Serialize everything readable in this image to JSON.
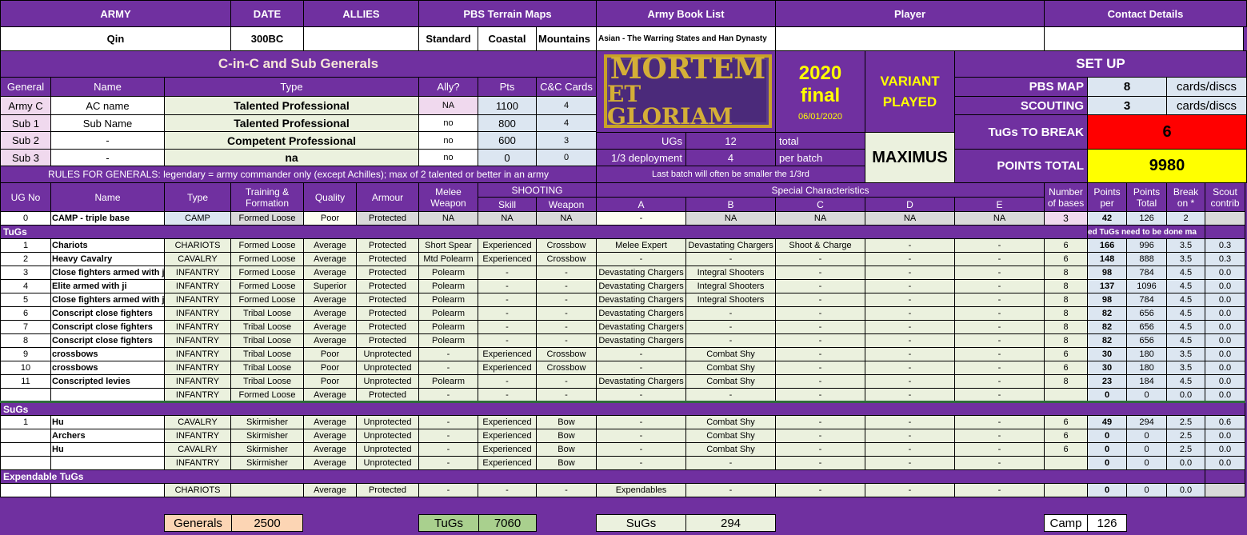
{
  "header": {
    "army_label": "ARMY",
    "date_label": "DATE",
    "allies_label": "ALLIES",
    "pbs_label": "PBS Terrain Maps",
    "book_label": "Army Book List",
    "player_label": "Player",
    "contact_label": "Contact Details",
    "army": "Qin",
    "date": "300BC",
    "allies": "",
    "pbs_maps": [
      "Standard",
      "Coastal",
      "Mountains"
    ],
    "book": "Asian - The Warring States and Han Dynasty",
    "player": "",
    "contact": ""
  },
  "generals": {
    "title": "C-in-C and Sub Generals",
    "cols": [
      "General",
      "Name",
      "Type",
      "Ally?",
      "Pts",
      "C&C Cards"
    ],
    "rows": [
      [
        "Army C",
        "AC name",
        "Talented Professional",
        "NA",
        "1100",
        "4"
      ],
      [
        "Sub 1",
        "Sub Name",
        "Talented Professional",
        "no",
        "800",
        "4"
      ],
      [
        "Sub 2",
        "-",
        "Competent Professional",
        "no",
        "600",
        "3"
      ],
      [
        "Sub 3",
        "-",
        "na",
        "no",
        "0",
        "0"
      ]
    ],
    "rules": "RULES FOR GENERALS: legendary = army commander only (except Achilles); max of 2 talented or better in an army"
  },
  "logo": {
    "line1": "MORTEM",
    "line2": "ET GLORIAM"
  },
  "version": {
    "year": "2020",
    "status": "final",
    "date": "06/01/2020"
  },
  "deploy": {
    "ugs_label": "UGs",
    "ugs": "12",
    "ugs_unit": "total",
    "third_label": "1/3 deployment",
    "third": "4",
    "third_unit": "per batch",
    "note": "Last batch will often be smaller the 1/3rd"
  },
  "variant": {
    "label1": "VARIANT",
    "label2": "PLAYED",
    "value": "MAXIMUS"
  },
  "setup": {
    "title": "SET UP",
    "pbs_label": "PBS MAP",
    "pbs": "8",
    "pbs_unit": "cards/discs",
    "scout_label": "SCOUTING",
    "scout": "3",
    "scout_unit": "cards/discs",
    "break_label": "TuGs TO BREAK",
    "break": "6",
    "points_label": "POINTS TOTAL",
    "points": "9980",
    "colors": {
      "break": "#ff0000",
      "points": "#ffff00"
    }
  },
  "table": {
    "h1": [
      "UG No",
      "Name",
      "Type",
      "Training & Formation",
      "Quality",
      "Armour",
      "Melee Weapon",
      "SHOOTING",
      "Special Characteristics",
      "Number of bases",
      "Points per",
      "Points Total",
      "Break on *",
      "Scout contrib"
    ],
    "h2": [
      "Skill",
      "Weapon",
      "A",
      "B",
      "C",
      "D",
      "E"
    ],
    "camp": [
      "0",
      "CAMP - triple base",
      "CAMP",
      "Formed Loose",
      "Poor",
      "Protected",
      "NA",
      "NA",
      "NA",
      "-",
      "NA",
      "NA",
      "NA",
      "NA",
      "3",
      "42",
      "126",
      "2",
      ""
    ],
    "tugs_label": "TuGs",
    "tugs_note": "ed TuGs need to be done ma",
    "tugs": [
      [
        "1",
        "Chariots",
        "CHARIOTS",
        "Formed Loose",
        "Average",
        "Protected",
        "Short Spear",
        "Experienced",
        "Crossbow",
        "Melee Expert",
        "Devastating Chargers",
        "Shoot & Charge",
        "-",
        "-",
        "6",
        "166",
        "996",
        "3.5",
        "0.3"
      ],
      [
        "2",
        "Heavy Cavalry",
        "CAVALRY",
        "Formed Loose",
        "Average",
        "Protected",
        "Mtd Polearm",
        "Experienced",
        "Crossbow",
        "-",
        "-",
        "-",
        "-",
        "-",
        "6",
        "148",
        "888",
        "3.5",
        "0.3"
      ],
      [
        "3",
        "Close fighters armed with ji",
        "INFANTRY",
        "Formed Loose",
        "Average",
        "Protected",
        "Polearm",
        "-",
        "-",
        "Devastating Chargers",
        "Integral Shooters",
        "-",
        "-",
        "-",
        "8",
        "98",
        "784",
        "4.5",
        "0.0"
      ],
      [
        "4",
        "Elite armed with ji",
        "INFANTRY",
        "Formed Loose",
        "Superior",
        "Protected",
        "Polearm",
        "-",
        "-",
        "Devastating Chargers",
        "Integral Shooters",
        "-",
        "-",
        "-",
        "8",
        "137",
        "1096",
        "4.5",
        "0.0"
      ],
      [
        "5",
        "Close fighters armed with ji",
        "INFANTRY",
        "Formed Loose",
        "Average",
        "Protected",
        "Polearm",
        "-",
        "-",
        "Devastating Chargers",
        "Integral Shooters",
        "-",
        "-",
        "-",
        "8",
        "98",
        "784",
        "4.5",
        "0.0"
      ],
      [
        "6",
        "Conscript close fighters",
        "INFANTRY",
        "Tribal Loose",
        "Average",
        "Protected",
        "Polearm",
        "-",
        "-",
        "Devastating Chargers",
        "-",
        "-",
        "-",
        "-",
        "8",
        "82",
        "656",
        "4.5",
        "0.0"
      ],
      [
        "7",
        "Conscript close fighters",
        "INFANTRY",
        "Tribal Loose",
        "Average",
        "Protected",
        "Polearm",
        "-",
        "-",
        "Devastating Chargers",
        "-",
        "-",
        "-",
        "-",
        "8",
        "82",
        "656",
        "4.5",
        "0.0"
      ],
      [
        "8",
        "Conscript close fighters",
        "INFANTRY",
        "Tribal Loose",
        "Average",
        "Protected",
        "Polearm",
        "-",
        "-",
        "Devastating Chargers",
        "-",
        "-",
        "-",
        "-",
        "8",
        "82",
        "656",
        "4.5",
        "0.0"
      ],
      [
        "9",
        "crossbows",
        "INFANTRY",
        "Tribal Loose",
        "Poor",
        "Unprotected",
        "-",
        "Experienced",
        "Crossbow",
        "-",
        "Combat Shy",
        "-",
        "-",
        "-",
        "6",
        "30",
        "180",
        "3.5",
        "0.0"
      ],
      [
        "10",
        "crossbows",
        "INFANTRY",
        "Tribal Loose",
        "Poor",
        "Unprotected",
        "-",
        "Experienced",
        "Crossbow",
        "-",
        "Combat Shy",
        "-",
        "-",
        "-",
        "6",
        "30",
        "180",
        "3.5",
        "0.0"
      ],
      [
        "11",
        "Conscripted levies",
        "INFANTRY",
        "Tribal Loose",
        "Poor",
        "Unprotected",
        "Polearm",
        "-",
        "-",
        "Devastating Chargers",
        "Combat Shy",
        "-",
        "-",
        "-",
        "8",
        "23",
        "184",
        "4.5",
        "0.0"
      ],
      [
        "",
        "",
        "INFANTRY",
        "Formed Loose",
        "Average",
        "Protected",
        "-",
        "-",
        "-",
        "-",
        "-",
        "-",
        "-",
        "-",
        "",
        "0",
        "0",
        "0.0",
        "0.0"
      ]
    ],
    "sugs_label": "SuGs",
    "sugs": [
      [
        "1",
        "Hu",
        "CAVALRY",
        "Skirmisher",
        "Average",
        "Unprotected",
        "-",
        "Experienced",
        "Bow",
        "-",
        "Combat Shy",
        "-",
        "-",
        "-",
        "6",
        "49",
        "294",
        "2.5",
        "0.6"
      ],
      [
        "",
        "Archers",
        "INFANTRY",
        "Skirmisher",
        "Average",
        "Unprotected",
        "-",
        "Experienced",
        "Bow",
        "-",
        "Combat Shy",
        "-",
        "-",
        "-",
        "6",
        "0",
        "0",
        "2.5",
        "0.0"
      ],
      [
        "",
        "Hu",
        "CAVALRY",
        "Skirmisher",
        "Average",
        "Unprotected",
        "-",
        "Experienced",
        "Bow",
        "-",
        "Combat Shy",
        "-",
        "-",
        "-",
        "6",
        "0",
        "0",
        "2.5",
        "0.0"
      ],
      [
        "",
        "",
        "INFANTRY",
        "Skirmisher",
        "Average",
        "Unprotected",
        "-",
        "Experienced",
        "Bow",
        "-",
        "-",
        "-",
        "-",
        "-",
        "",
        "0",
        "0",
        "0.0",
        "0.0"
      ]
    ],
    "exp_label": "Expendable TuGs",
    "exp": [
      [
        "",
        "",
        "CHARIOTS",
        "",
        "Average",
        "Protected",
        "-",
        "-",
        "-",
        "Expendables",
        "-",
        "-",
        "-",
        "-",
        "",
        "0",
        "0",
        "0.0",
        ""
      ]
    ]
  },
  "summary": {
    "generals_label": "Generals",
    "generals": "2500",
    "tugs_label": "TuGs",
    "tugs": "7060",
    "sugs_label": "SuGs",
    "sugs": "294",
    "camp_label": "Camp",
    "camp": "126"
  }
}
